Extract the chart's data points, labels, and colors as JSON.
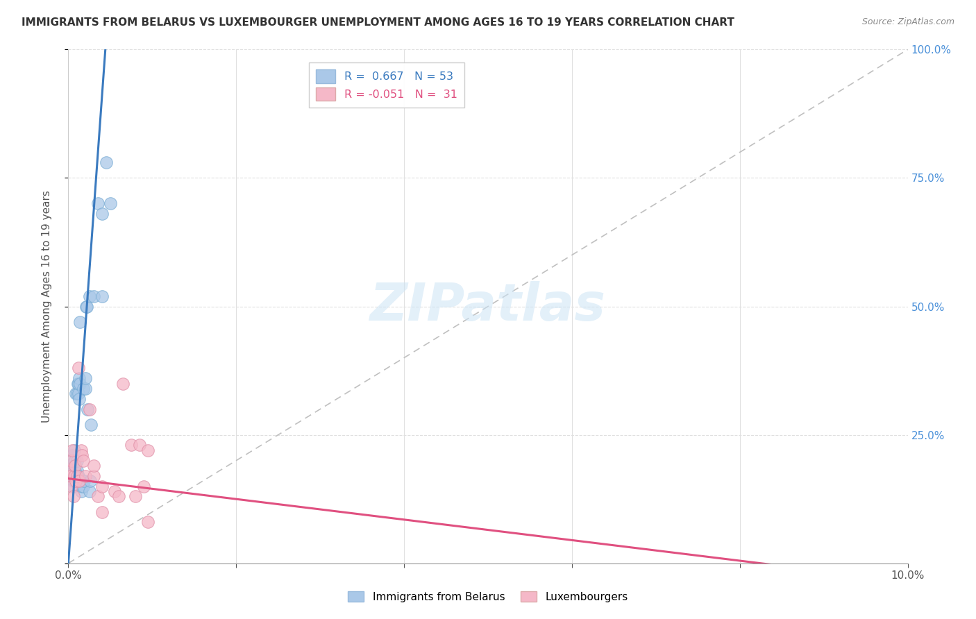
{
  "title": "IMMIGRANTS FROM BELARUS VS LUXEMBOURGER UNEMPLOYMENT AMONG AGES 16 TO 19 YEARS CORRELATION CHART",
  "source": "Source: ZipAtlas.com",
  "ylabel": "Unemployment Among Ages 16 to 19 years",
  "xlim": [
    0.0,
    0.1
  ],
  "ylim": [
    0.0,
    1.0
  ],
  "r_blue": 0.667,
  "n_blue": 53,
  "r_pink": -0.051,
  "n_pink": 31,
  "color_blue": "#aac8e8",
  "color_pink": "#f5b8c8",
  "line_blue": "#3a7abf",
  "line_pink": "#e05080",
  "legend_label_blue": "Immigrants from Belarus",
  "legend_label_pink": "Luxembourgers",
  "blue_scatter_x": [
    0.0002,
    0.0003,
    0.0004,
    0.0004,
    0.0005,
    0.0005,
    0.0005,
    0.0006,
    0.0006,
    0.0006,
    0.0006,
    0.0007,
    0.0007,
    0.0007,
    0.0008,
    0.0008,
    0.0008,
    0.0009,
    0.0009,
    0.001,
    0.001,
    0.001,
    0.0011,
    0.0011,
    0.0012,
    0.0012,
    0.0012,
    0.0013,
    0.0013,
    0.0014,
    0.0014,
    0.0015,
    0.0015,
    0.0016,
    0.0017,
    0.0018,
    0.0018,
    0.0019,
    0.002,
    0.002,
    0.0021,
    0.0022,
    0.0023,
    0.0025,
    0.0025,
    0.0026,
    0.0027,
    0.003,
    0.0035,
    0.004,
    0.004,
    0.0045,
    0.005
  ],
  "blue_scatter_y": [
    0.17,
    0.18,
    0.17,
    0.19,
    0.16,
    0.17,
    0.21,
    0.15,
    0.17,
    0.18,
    0.19,
    0.16,
    0.2,
    0.22,
    0.17,
    0.18,
    0.2,
    0.17,
    0.33,
    0.18,
    0.2,
    0.33,
    0.17,
    0.35,
    0.17,
    0.33,
    0.35,
    0.32,
    0.36,
    0.35,
    0.47,
    0.14,
    0.16,
    0.15,
    0.16,
    0.15,
    0.34,
    0.16,
    0.34,
    0.36,
    0.5,
    0.5,
    0.3,
    0.52,
    0.14,
    0.16,
    0.27,
    0.52,
    0.7,
    0.68,
    0.52,
    0.78,
    0.7
  ],
  "pink_scatter_x": [
    0.0002,
    0.0003,
    0.0004,
    0.0004,
    0.0005,
    0.0006,
    0.0007,
    0.0008,
    0.0009,
    0.001,
    0.0012,
    0.0013,
    0.0015,
    0.0016,
    0.0018,
    0.002,
    0.0025,
    0.003,
    0.003,
    0.0035,
    0.004,
    0.004,
    0.0055,
    0.006,
    0.0065,
    0.0075,
    0.008,
    0.0085,
    0.009,
    0.0095,
    0.0095
  ],
  "pink_scatter_y": [
    0.18,
    0.17,
    0.2,
    0.15,
    0.22,
    0.13,
    0.17,
    0.19,
    0.16,
    0.17,
    0.38,
    0.16,
    0.22,
    0.21,
    0.2,
    0.17,
    0.3,
    0.17,
    0.19,
    0.13,
    0.15,
    0.1,
    0.14,
    0.13,
    0.35,
    0.23,
    0.13,
    0.23,
    0.15,
    0.22,
    0.08
  ],
  "blue_line": [
    [
      0.0,
      0.0
    ],
    [
      0.003,
      0.68
    ]
  ],
  "pink_line": [
    [
      0.0,
      0.165
    ],
    [
      0.01,
      0.145
    ]
  ],
  "watermark": "ZIPatlas",
  "background_color": "#ffffff",
  "grid_color": "#e0e0e0"
}
